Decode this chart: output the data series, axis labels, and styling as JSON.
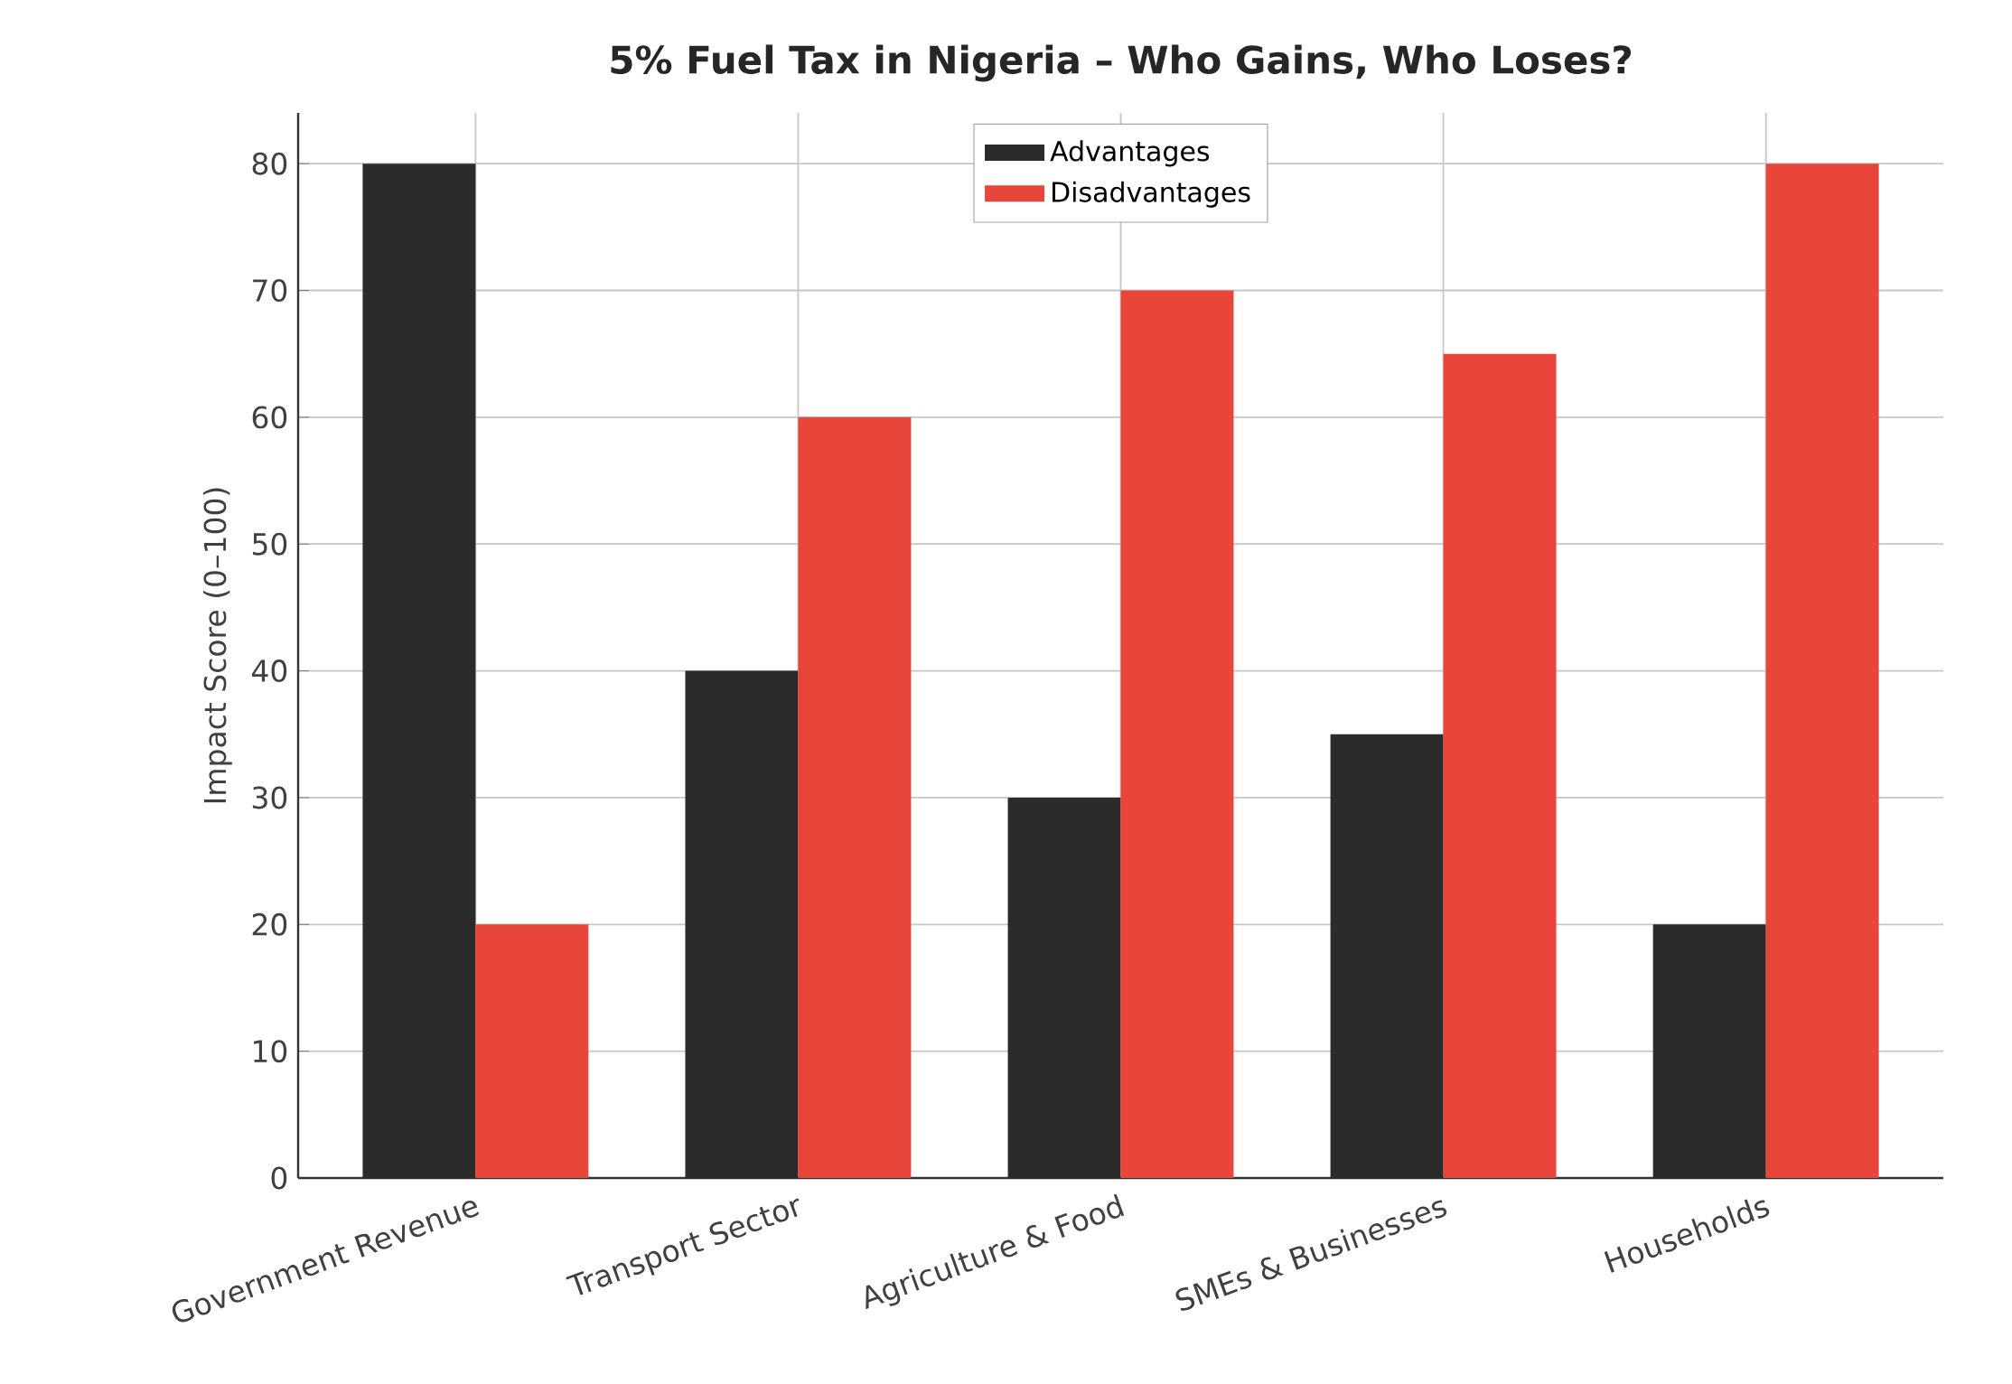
{
  "chart_data": {
    "type": "bar",
    "title": "5% Fuel Tax in Nigeria – Who Gains, Who Loses?",
    "ylabel": "Impact Score (0–100)",
    "categories": [
      "Government Revenue",
      "Transport Sector",
      "Agriculture & Food",
      "SMEs & Businesses",
      "Households"
    ],
    "series": [
      {
        "name": "Advantages",
        "color": "#2b2b2b",
        "values": [
          80,
          40,
          30,
          35,
          20
        ]
      },
      {
        "name": "Disadvantages",
        "color": "#e8463a",
        "values": [
          20,
          60,
          70,
          65,
          80
        ]
      }
    ],
    "ylim": [
      0,
      84
    ],
    "yticks": [
      0,
      10,
      20,
      30,
      40,
      50,
      60,
      70,
      80
    ],
    "grid": true,
    "legend": "top"
  }
}
